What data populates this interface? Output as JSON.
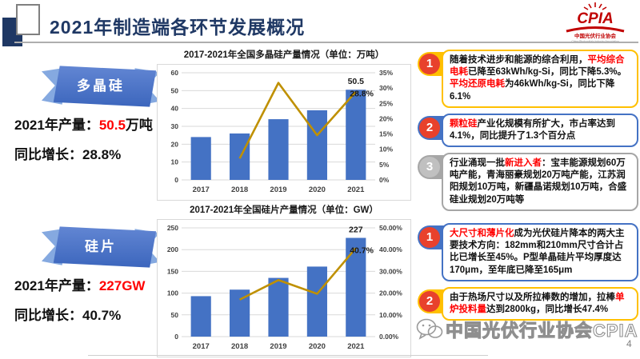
{
  "header": {
    "title": "2021年制造端各环节发展概况",
    "logo": {
      "acronym": "CPIA",
      "cn": "中国光伏行业协会",
      "en": "China Photovoltaic Industry Association"
    }
  },
  "colors": {
    "title_navy": "#1F3864",
    "bar_blue": "#4472C4",
    "line_gold": "#BF9000",
    "highlight_red": "#FF0000",
    "accent_yellow": "#FFC000",
    "accent_blue": "#4472C4",
    "accent_gray": "#A6A6A6",
    "badge_red": "#E8412C",
    "badge_gray": "#C0C0C0"
  },
  "left_sections": [
    {
      "banner": "多晶硅",
      "production_label": "2021年产量：",
      "production_value": "50.5",
      "production_unit": "万吨",
      "growth_label": "同比增长：",
      "growth_value": "28.8%"
    },
    {
      "banner": "硅片",
      "production_label": "2021年产量：",
      "production_value": "227GW",
      "production_unit": "",
      "growth_label": "同比增长：",
      "growth_value": "40.7%"
    }
  ],
  "chart_data": [
    {
      "type": "bar",
      "combo": "bar+line",
      "title": "2017-2021年全国多晶硅产量情况（单位：万吨）",
      "categories": [
        "2017",
        "2018",
        "2019",
        "2020",
        "2021"
      ],
      "series": [
        {
          "name": "产量（万吨）",
          "type": "bar",
          "axis": "left",
          "values": [
            24,
            26,
            34,
            39,
            50.5
          ]
        },
        {
          "name": "同比增长率",
          "type": "line",
          "axis": "right",
          "values": [
            null,
            7,
            31.7,
            14.6,
            28.8
          ]
        }
      ],
      "left_axis": {
        "min": 0,
        "max": 60,
        "ticks": [
          "0",
          "10",
          "20",
          "30",
          "40",
          "50",
          "60"
        ]
      },
      "right_axis": {
        "min": 0,
        "max": 35,
        "ticks": [
          "0%",
          "5%",
          "10%",
          "15%",
          "20%",
          "25%",
          "30%",
          "35%"
        ]
      },
      "labels": {
        "bar": "50.5",
        "line": "28.8%"
      },
      "grid": true,
      "legend": "none",
      "bar_color": "#4472C4",
      "line_color": "#BF9000"
    },
    {
      "type": "bar",
      "combo": "bar+line",
      "title": "2017-2021年全国硅片产量情况（单位：GW）",
      "categories": [
        "2017",
        "2018",
        "2019",
        "2020",
        "2021"
      ],
      "series": [
        {
          "name": "产量（GW）",
          "type": "bar",
          "axis": "left",
          "values": [
            93,
            108,
            135,
            161,
            227
          ]
        },
        {
          "name": "同比增长率",
          "type": "line",
          "axis": "right",
          "values": [
            null,
            17,
            26,
            19.7,
            40.7
          ]
        }
      ],
      "left_axis": {
        "min": 0,
        "max": 250,
        "ticks": [
          "0",
          "50",
          "100",
          "150",
          "200",
          "250"
        ]
      },
      "right_axis": {
        "min": 0,
        "max": 50,
        "ticks": [
          "0.00%",
          "10.00%",
          "20.00%",
          "30.00%",
          "40.00%",
          "50.00%"
        ]
      },
      "labels": {
        "bar": "227",
        "line": "40.7%"
      },
      "grid": true,
      "legend": "none",
      "bar_color": "#4472C4",
      "line_color": "#BF9000"
    }
  ],
  "right_panels": {
    "top": [
      {
        "num": "1",
        "accent": "#FFC000",
        "num_bg": "#E8412C",
        "segments": [
          {
            "text": "随着技术进步和能源的综合利用，",
            "red": false
          },
          {
            "text": "平均综合电耗",
            "red": true
          },
          {
            "text": "已降至63kWh/kg-Si，同比下降5.3%。",
            "red": false
          },
          {
            "text": "平均还原电耗",
            "red": true
          },
          {
            "text": "为46kWh/kg-Si，同比下降6.1%",
            "red": false
          }
        ]
      },
      {
        "num": "2",
        "accent": "#4472C4",
        "num_bg": "#E8412C",
        "segments": [
          {
            "text": "颗粒硅",
            "red": true
          },
          {
            "text": "产业化规模有所扩大，市占率达到4.1%，同比提升了1.3个百分点",
            "red": false
          }
        ]
      },
      {
        "num": "3",
        "accent": "#A6A6A6",
        "num_bg": "#C0C0C0",
        "segments": [
          {
            "text": "行业涌现一批",
            "red": false
          },
          {
            "text": "新进入者",
            "red": true
          },
          {
            "text": "：宝丰能源规划60万吨产能，青海丽豪规划20万吨产能，江苏润阳规划10万吨，新疆晶诺规划10万吨，合盛硅业规划20万吨等",
            "red": false
          }
        ]
      }
    ],
    "bottom": [
      {
        "num": "1",
        "accent": "#4472C4",
        "num_bg": "#E8412C",
        "segments": [
          {
            "text": "大尺寸和薄片化",
            "red": true
          },
          {
            "text": "成为光伏硅片降本的两大主要技术方向：182mm和210mm尺寸合计占比已增长至45%。P型单晶硅片平均厚度达170μm，至年底已降至165μm",
            "red": false
          }
        ]
      },
      {
        "num": "2",
        "accent": "#FFC000",
        "num_bg": "#E8412C",
        "segments": [
          {
            "text": "由于热场尺寸以及所拉棒数的增加，拉棒",
            "red": false
          },
          {
            "text": "单炉投料量",
            "red": true
          },
          {
            "text": "达到2800kg，同比增长47.4%",
            "red": false
          }
        ]
      }
    ]
  },
  "footer": {
    "watermark": "中国光伏行业协会CPIA",
    "page_number": "4"
  }
}
